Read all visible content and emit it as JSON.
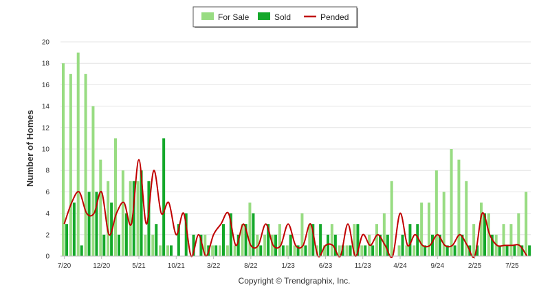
{
  "chart_data": {
    "type": "bar",
    "ylabel": "Number of Homes",
    "ylim": [
      0,
      20
    ],
    "yticks": [
      0,
      2,
      4,
      6,
      8,
      10,
      12,
      14,
      16,
      18,
      20
    ],
    "grid": true,
    "legend_position": "top-center",
    "copyright": "Copyright © Trendgraphix, Inc.",
    "colors": {
      "for_sale": "#98dc82",
      "sold": "#14a82a",
      "pended": "#c00000"
    },
    "x_tick_labels": [
      "7/20",
      "12/20",
      "5/21",
      "10/21",
      "3/22",
      "8/22",
      "1/23",
      "6/23",
      "11/23",
      "4/24",
      "9/24",
      "2/25",
      "7/25"
    ],
    "x_tick_every": 5,
    "series": [
      {
        "name": "For Sale",
        "type": "bar",
        "values": [
          18,
          17,
          19,
          17,
          14,
          9,
          7,
          11,
          8,
          7,
          7,
          2,
          2,
          1,
          1,
          0,
          0,
          0,
          0,
          2,
          1,
          1,
          1,
          1,
          3,
          5,
          2,
          2,
          2,
          3,
          1,
          1,
          4,
          3,
          1,
          1,
          3,
          1,
          1,
          3,
          1,
          2,
          3,
          4,
          7,
          1,
          1,
          1,
          5,
          5,
          8,
          6,
          10,
          9,
          7,
          3,
          5,
          4,
          2,
          3,
          3,
          4,
          6
        ]
      },
      {
        "name": "Sold",
        "type": "bar",
        "values": [
          3,
          5,
          1,
          6,
          6,
          2,
          5,
          2,
          4,
          7,
          8,
          7,
          3,
          11,
          1,
          3,
          4,
          2,
          2,
          1,
          1,
          3,
          4,
          2,
          3,
          4,
          1,
          3,
          2,
          1,
          2,
          1,
          1,
          3,
          3,
          2,
          2,
          1,
          1,
          3,
          1,
          1,
          2,
          2,
          0,
          2,
          3,
          3,
          1,
          2,
          2,
          1,
          1,
          2,
          1,
          1,
          4,
          2,
          1,
          1,
          1,
          1,
          1
        ]
      },
      {
        "name": "Pended",
        "type": "line",
        "values": [
          3,
          5,
          6,
          4,
          4,
          6,
          2,
          4,
          5,
          3,
          9,
          3,
          8,
          4,
          5,
          2,
          4,
          0,
          2,
          0,
          2,
          3,
          4,
          1,
          3,
          1,
          1,
          3,
          1,
          1,
          3,
          1,
          1,
          3,
          0,
          1,
          1,
          0,
          3,
          0,
          2,
          1,
          2,
          1,
          0,
          4,
          1,
          2,
          1,
          1,
          2,
          1,
          1,
          2,
          1,
          0,
          4,
          2,
          1,
          1,
          1,
          1,
          0
        ]
      }
    ]
  }
}
